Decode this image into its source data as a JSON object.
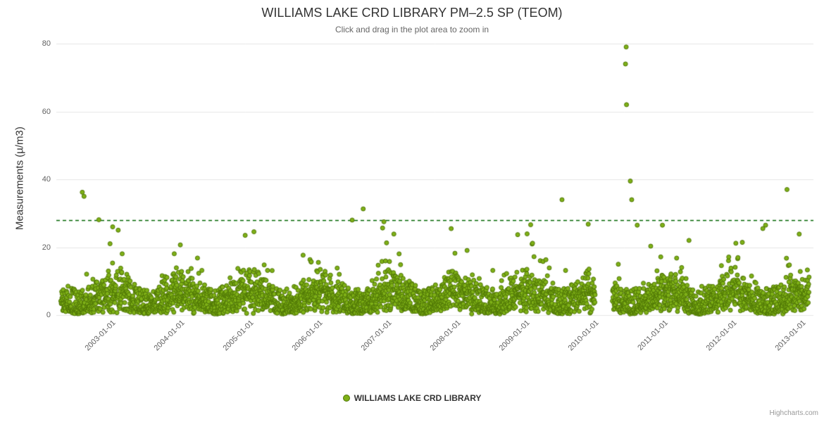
{
  "header": {
    "title": "WILLIAMS LAKE CRD LIBRARY PM–2.5 SP (TEOM)",
    "subtitle": "Click and drag in the plot area to zoom in"
  },
  "legend": {
    "label": "WILLIAMS LAKE CRD LIBRARY"
  },
  "credits": {
    "label": "Highcharts.com"
  },
  "chart_data": {
    "type": "scatter",
    "title": "WILLIAMS LAKE CRD LIBRARY PM–2.5 SP (TEOM)",
    "subtitle": "Click and drag in the plot area to zoom in",
    "ylabel": "Measurements (µ/m3)",
    "ylim": [
      0,
      80
    ],
    "yticks": [
      0,
      20,
      40,
      60,
      80
    ],
    "xlim_years": [
      2002.184,
      2013.153
    ],
    "xticks": [
      {
        "year": 2003,
        "label": "2003-01-01"
      },
      {
        "year": 2004,
        "label": "2004-01-01"
      },
      {
        "year": 2005,
        "label": "2005-01-01"
      },
      {
        "year": 2006,
        "label": "2006-01-01"
      },
      {
        "year": 2007,
        "label": "2007-01-01"
      },
      {
        "year": 2008,
        "label": "2008-01-01"
      },
      {
        "year": 2009,
        "label": "2009-01-01"
      },
      {
        "year": 2010,
        "label": "2010-01-01"
      },
      {
        "year": 2011,
        "label": "2011-01-01"
      },
      {
        "year": 2012,
        "label": "2012-01-01"
      },
      {
        "year": 2013,
        "label": "2013-01-01"
      }
    ],
    "grid": true,
    "legend_position": "bottom",
    "series": [
      {
        "name": "WILLIAMS LAKE CRD LIBRARY",
        "marker_fill": "#7fb117",
        "marker_stroke": "#4e7505",
        "marker_radius": 3
      }
    ],
    "threshold_line": {
      "y": 28,
      "color": "#006600",
      "dash": [
        5,
        4
      ]
    },
    "colors": {
      "grid": "#e6e6e6",
      "axis_labels": "#606060",
      "title": "#333333",
      "subtitle": "#666666"
    },
    "outliers": [
      [
        2002.56,
        36.2
      ],
      [
        2002.585,
        35.0
      ],
      [
        2002.8,
        28.1
      ],
      [
        2003.0,
        26.0
      ],
      [
        2004.92,
        23.5
      ],
      [
        2006.47,
        28.0
      ],
      [
        2006.63,
        31.3
      ],
      [
        2006.93,
        27.5
      ],
      [
        2009.51,
        34.0
      ],
      [
        2009.89,
        26.8
      ],
      [
        2010.43,
        74.0
      ],
      [
        2010.44,
        79.0
      ],
      [
        2010.445,
        62.0
      ],
      [
        2010.5,
        39.5
      ],
      [
        2010.52,
        34.0
      ],
      [
        2010.6,
        26.5
      ],
      [
        2011.35,
        22.0
      ],
      [
        2012.42,
        25.5
      ],
      [
        2012.46,
        26.5
      ],
      [
        2012.77,
        37.0
      ]
    ],
    "cloud": {
      "seed": 97,
      "t_start": 2002.25,
      "t_end": 2013.09,
      "points_per_year": 330,
      "gaps": [
        [
          2009.99,
          2010.24
        ]
      ],
      "max_baseline": 27
    }
  }
}
